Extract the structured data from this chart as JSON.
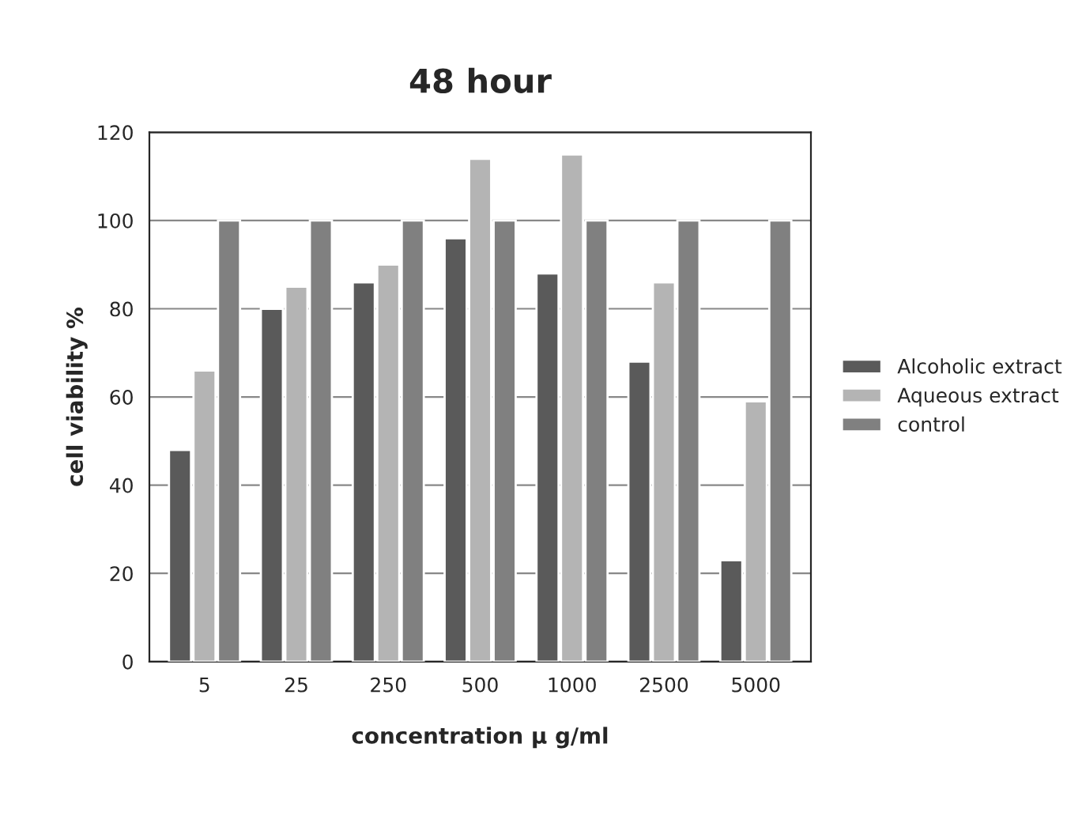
{
  "chart_data": {
    "type": "bar",
    "title": "48 hour",
    "xlabel": "concentration μ g/ml",
    "ylabel": "cell viability %",
    "categories": [
      "5",
      "25",
      "250",
      "500",
      "1000",
      "2500",
      "5000"
    ],
    "series": [
      {
        "name": "Alcoholic extract",
        "color": "#5a5a5a",
        "values": [
          48,
          80,
          86,
          96,
          88,
          68,
          23
        ]
      },
      {
        "name": "Aqueous extract",
        "color": "#b4b4b4",
        "values": [
          66,
          85,
          90,
          114,
          115,
          86,
          59
        ]
      },
      {
        "name": "control",
        "color": "#808080",
        "values": [
          100,
          100,
          100,
          100,
          100,
          100,
          100
        ]
      }
    ],
    "ylim": [
      0,
      120
    ],
    "yticks": [
      0,
      20,
      40,
      60,
      80,
      100,
      120
    ],
    "grid": "y",
    "legend": "right"
  }
}
